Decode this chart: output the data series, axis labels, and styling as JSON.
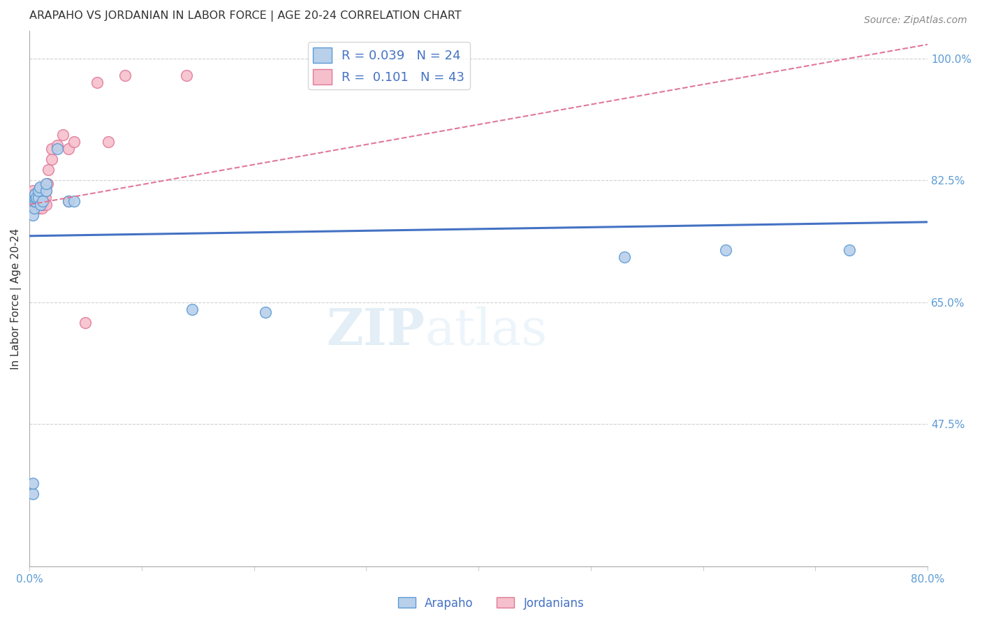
{
  "title": "ARAPAHO VS JORDANIAN IN LABOR FORCE | AGE 20-24 CORRELATION CHART",
  "source": "Source: ZipAtlas.com",
  "ylabel": "In Labor Force | Age 20-24",
  "xlim": [
    0.0,
    0.8
  ],
  "ylim": [
    0.27,
    1.04
  ],
  "xticks": [
    0.0,
    0.1,
    0.2,
    0.3,
    0.4,
    0.5,
    0.6,
    0.7,
    0.8
  ],
  "xticklabels": [
    "0.0%",
    "",
    "",
    "",
    "",
    "",
    "",
    "",
    "80.0%"
  ],
  "yticks_right": [
    0.475,
    0.65,
    0.825,
    1.0
  ],
  "ytick_labels_right": [
    "47.5%",
    "65.0%",
    "82.5%",
    "100.0%"
  ],
  "grid_color": "#d0d0d0",
  "arapaho_color": "#b8d0ea",
  "arapaho_edge_color": "#5b9bd5",
  "jordanian_color": "#f5c0cc",
  "jordanian_edge_color": "#e07898",
  "arapaho_R": 0.039,
  "arapaho_N": 24,
  "jordanian_R": 0.101,
  "jordanian_N": 43,
  "watermark_zip": "ZIP",
  "watermark_atlas": "atlas",
  "arapaho_x": [
    0.003,
    0.003,
    0.003,
    0.004,
    0.004,
    0.005,
    0.005,
    0.005,
    0.006,
    0.008,
    0.008,
    0.009,
    0.01,
    0.012,
    0.015,
    0.015,
    0.025,
    0.035,
    0.04,
    0.21,
    0.53,
    0.62,
    0.73,
    0.145
  ],
  "arapaho_y": [
    0.375,
    0.39,
    0.775,
    0.785,
    0.795,
    0.795,
    0.8,
    0.805,
    0.8,
    0.8,
    0.81,
    0.815,
    0.79,
    0.795,
    0.81,
    0.82,
    0.87,
    0.795,
    0.795,
    0.635,
    0.715,
    0.725,
    0.725,
    0.64
  ],
  "jordanian_x": [
    0.003,
    0.003,
    0.003,
    0.003,
    0.003,
    0.004,
    0.004,
    0.005,
    0.005,
    0.005,
    0.006,
    0.006,
    0.007,
    0.007,
    0.008,
    0.008,
    0.009,
    0.009,
    0.01,
    0.01,
    0.01,
    0.011,
    0.012,
    0.012,
    0.013,
    0.013,
    0.014,
    0.015,
    0.015,
    0.016,
    0.017,
    0.02,
    0.02,
    0.025,
    0.03,
    0.035,
    0.04,
    0.05,
    0.06,
    0.035,
    0.07,
    0.085,
    0.14
  ],
  "jordanian_y": [
    0.79,
    0.795,
    0.8,
    0.805,
    0.81,
    0.785,
    0.8,
    0.79,
    0.795,
    0.805,
    0.785,
    0.795,
    0.79,
    0.8,
    0.785,
    0.79,
    0.795,
    0.81,
    0.79,
    0.8,
    0.815,
    0.785,
    0.79,
    0.8,
    0.795,
    0.815,
    0.8,
    0.79,
    0.81,
    0.82,
    0.84,
    0.855,
    0.87,
    0.875,
    0.89,
    0.87,
    0.88,
    0.62,
    0.965,
    0.795,
    0.88,
    0.975,
    0.975
  ],
  "blue_trend_x": [
    0.0,
    0.8
  ],
  "blue_trend_y": [
    0.745,
    0.765
  ],
  "pink_trend_x": [
    0.0,
    0.8
  ],
  "pink_trend_y": [
    0.79,
    1.02
  ]
}
